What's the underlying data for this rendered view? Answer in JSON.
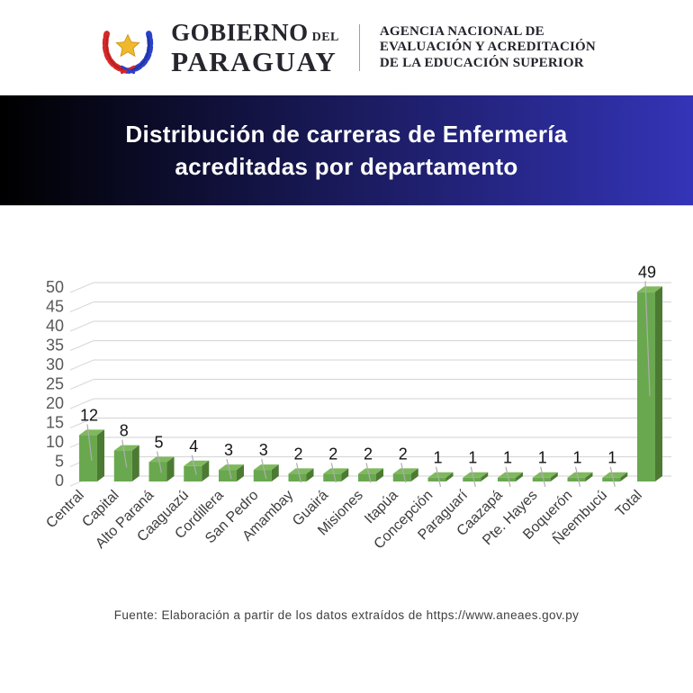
{
  "header": {
    "logo": "paraguay-coat-of-arms",
    "government": {
      "name_top": "GOBIERNO",
      "name_top_suffix": "DEL",
      "name_bottom": "PARAGUAY"
    },
    "agency": {
      "line1": "AGENCIA NACIONAL DE",
      "line2": "EVALUACIÓN Y ACREDITACIÓN",
      "line3": "DE LA EDUCACIÓN SUPERIOR"
    }
  },
  "banner": {
    "title_line1": "Distribución de carreras de Enfermería",
    "title_line2": "acreditadas por departamento",
    "gradient_left": "#000000",
    "gradient_right": "#3434b8",
    "text_color": "#ffffff"
  },
  "chart_data": {
    "type": "bar",
    "style": "3d-column",
    "title": "Distribución de carreras de Enfermería acreditadas por departamento",
    "categories": [
      "Central",
      "Capital",
      "Alto Paraná",
      "Caaguazú",
      "Cordillera",
      "San Pedro",
      "Amambay",
      "Guairá",
      "Misiones",
      "Itapúa",
      "Concepción",
      "Paraguarí",
      "Caazapá",
      "Pte. Hayes",
      "Boquerón",
      "Ñeembucú",
      "Total"
    ],
    "values": [
      12,
      8,
      5,
      4,
      3,
      3,
      2,
      2,
      2,
      2,
      1,
      1,
      1,
      1,
      1,
      1,
      49
    ],
    "y_ticks": [
      0,
      5,
      10,
      15,
      20,
      25,
      30,
      35,
      40,
      45,
      50
    ],
    "ylim": [
      0,
      50
    ],
    "xlabel": "",
    "ylabel": "",
    "grid": true,
    "legend": "none",
    "bar_color_front": "#6aa84f",
    "bar_color_top": "#7fb95e",
    "bar_color_side": "#4c7a33",
    "gridline_color": "#d9d9d9",
    "leader_line_color": "#adadad",
    "axis_label_color": "#595959",
    "category_label_color": "#3d3d3d",
    "value_label_color": "#141414"
  },
  "footer": {
    "source": "Fuente: Elaboración a partir de los datos extraídos de  https://www.aneaes.gov.py"
  }
}
